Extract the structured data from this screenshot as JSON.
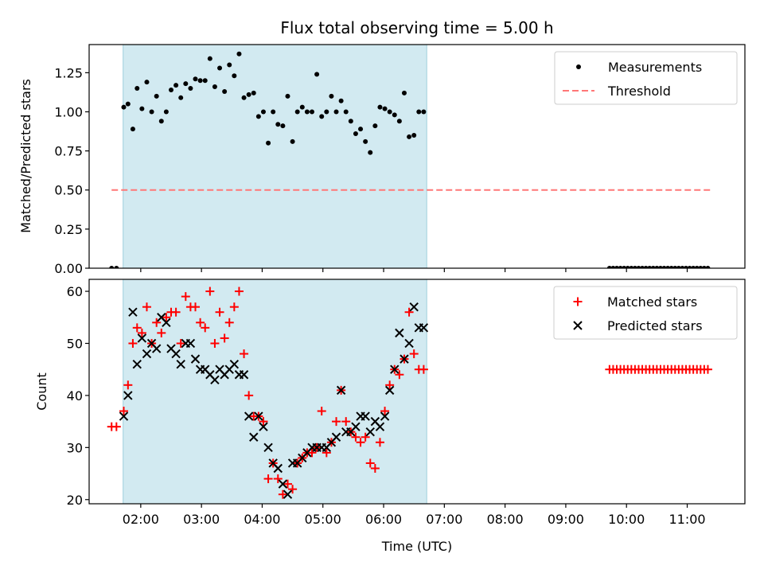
{
  "title": "Flux total observing time = 5.00 h",
  "colors": {
    "measurement": "#000000",
    "threshold": "#ff7777",
    "matched": "#ff0000",
    "predicted": "#000000",
    "observing_window": "#add8e6"
  },
  "chart_data": [
    {
      "type": "scatter",
      "title": "Flux total observing time = 5.00 h",
      "ylabel": "Matched/Predicted stars",
      "xlabel": "",
      "xlim": [
        1.15,
        11.95
      ],
      "ylim": [
        0,
        1.43
      ],
      "yticks": [
        {
          "value": 0.0,
          "label": "0.00"
        },
        {
          "value": 0.25,
          "label": "0.25"
        },
        {
          "value": 0.5,
          "label": "0.50"
        },
        {
          "value": 0.75,
          "label": "0.75"
        },
        {
          "value": 1.0,
          "label": "1.00"
        },
        {
          "value": 1.25,
          "label": "1.25"
        }
      ],
      "xticks": [
        2,
        3,
        4,
        5,
        6,
        7,
        8,
        9,
        10,
        11
      ],
      "shaded_region": [
        1.71,
        6.71
      ],
      "legend_position": "upper right",
      "legend": [
        "Measurements",
        "Threshold"
      ],
      "threshold": {
        "name": "Threshold",
        "value": 0.5,
        "x_range": [
          1.52,
          11.4
        ]
      },
      "series": [
        {
          "name": "Measurements",
          "x": [
            1.52,
            1.6,
            1.72,
            1.79,
            1.87,
            1.94,
            2.02,
            2.1,
            2.18,
            2.26,
            2.34,
            2.42,
            2.5,
            2.58,
            2.66,
            2.74,
            2.82,
            2.9,
            2.98,
            3.06,
            3.14,
            3.22,
            3.3,
            3.38,
            3.46,
            3.54,
            3.62,
            3.7,
            3.78,
            3.86,
            3.94,
            4.02,
            4.1,
            4.18,
            4.26,
            4.34,
            4.42,
            4.5,
            4.58,
            4.66,
            4.74,
            4.82,
            4.9,
            4.98,
            5.06,
            5.14,
            5.22,
            5.3,
            5.38,
            5.46,
            5.54,
            5.62,
            5.7,
            5.78,
            5.86,
            5.94,
            6.02,
            6.1,
            6.18,
            6.26,
            6.34,
            6.42,
            6.5,
            6.58,
            6.66,
            9.72,
            9.78,
            9.84,
            9.9,
            9.96,
            10.02,
            10.08,
            10.14,
            10.2,
            10.26,
            10.32,
            10.38,
            10.44,
            10.5,
            10.56,
            10.62,
            10.68,
            10.74,
            10.8,
            10.86,
            10.92,
            10.98,
            11.04,
            11.1,
            11.16,
            11.22,
            11.28,
            11.34
          ],
          "y": [
            0.0,
            0.0,
            1.03,
            1.05,
            0.89,
            1.15,
            1.02,
            1.19,
            1.0,
            1.1,
            0.94,
            1.0,
            1.14,
            1.17,
            1.09,
            1.18,
            1.15,
            1.21,
            1.2,
            1.2,
            1.34,
            1.16,
            1.28,
            1.13,
            1.3,
            1.23,
            1.37,
            1.09,
            1.11,
            1.12,
            0.97,
            1.0,
            0.8,
            1.0,
            0.92,
            0.91,
            1.1,
            0.81,
            1.0,
            1.03,
            1.0,
            1.0,
            1.24,
            0.97,
            1.0,
            1.1,
            1.0,
            1.07,
            1.0,
            0.94,
            0.86,
            0.89,
            0.81,
            0.74,
            0.91,
            1.03,
            1.02,
            1.0,
            0.98,
            0.94,
            1.12,
            0.84,
            0.85,
            1.0,
            1.0,
            0.0,
            0.0,
            0.0,
            0.0,
            0.0,
            0.0,
            0.0,
            0.0,
            0.0,
            0.0,
            0.0,
            0.0,
            0.0,
            0.0,
            0.0,
            0.0,
            0.0,
            0.0,
            0.0,
            0.0,
            0.0,
            0.0,
            0.0,
            0.0,
            0.0,
            0.0,
            0.0,
            0.0
          ]
        }
      ]
    },
    {
      "type": "scatter",
      "title": "",
      "xlabel": "Time (UTC)",
      "ylabel": "Count",
      "xlim": [
        1.15,
        11.95
      ],
      "ylim": [
        19.2,
        62.3
      ],
      "yticks": [
        {
          "value": 20,
          "label": "20"
        },
        {
          "value": 30,
          "label": "30"
        },
        {
          "value": 40,
          "label": "40"
        },
        {
          "value": 50,
          "label": "50"
        },
        {
          "value": 60,
          "label": "60"
        }
      ],
      "xticks": [
        {
          "value": 2,
          "label": "02:00"
        },
        {
          "value": 3,
          "label": "03:00"
        },
        {
          "value": 4,
          "label": "04:00"
        },
        {
          "value": 5,
          "label": "05:00"
        },
        {
          "value": 6,
          "label": "06:00"
        },
        {
          "value": 7,
          "label": "07:00"
        },
        {
          "value": 8,
          "label": "08:00"
        },
        {
          "value": 9,
          "label": "09:00"
        },
        {
          "value": 10,
          "label": "10:00"
        },
        {
          "value": 11,
          "label": "11:00"
        }
      ],
      "shaded_region": [
        1.71,
        6.71
      ],
      "legend_position": "upper right",
      "legend": [
        "Matched stars",
        "Predicted stars"
      ],
      "series": [
        {
          "name": "Matched stars",
          "x": [
            1.52,
            1.6,
            1.72,
            1.79,
            1.87,
            1.94,
            2.02,
            2.1,
            2.18,
            2.26,
            2.34,
            2.42,
            2.5,
            2.58,
            2.66,
            2.74,
            2.82,
            2.9,
            2.98,
            3.06,
            3.14,
            3.22,
            3.3,
            3.38,
            3.46,
            3.54,
            3.62,
            3.7,
            3.78,
            3.86,
            3.94,
            4.02,
            4.1,
            4.18,
            4.26,
            4.34,
            4.42,
            4.5,
            4.58,
            4.66,
            4.74,
            4.82,
            4.9,
            4.98,
            5.06,
            5.14,
            5.22,
            5.3,
            5.38,
            5.46,
            5.54,
            5.62,
            5.7,
            5.78,
            5.86,
            5.94,
            6.02,
            6.1,
            6.18,
            6.26,
            6.34,
            6.42,
            6.5,
            6.58,
            6.66,
            9.72,
            9.78,
            9.84,
            9.9,
            9.96,
            10.02,
            10.08,
            10.14,
            10.2,
            10.26,
            10.32,
            10.38,
            10.44,
            10.5,
            10.56,
            10.62,
            10.68,
            10.74,
            10.8,
            10.86,
            10.92,
            10.98,
            11.04,
            11.1,
            11.16,
            11.22,
            11.28,
            11.34
          ],
          "y": [
            34,
            34,
            37,
            42,
            50,
            53,
            52,
            57,
            50,
            54,
            52,
            55,
            56,
            56,
            50,
            59,
            57,
            57,
            54,
            53,
            60,
            50,
            56,
            51,
            54,
            57,
            60,
            48,
            40,
            36,
            36,
            35,
            24,
            27,
            24,
            21,
            23,
            22,
            27,
            28,
            29,
            29,
            30,
            37,
            29,
            31,
            35,
            41,
            35,
            33,
            32,
            31,
            32,
            27,
            26,
            31,
            37,
            42,
            45,
            44,
            47,
            56,
            48,
            45,
            45,
            45,
            45,
            45,
            45,
            45,
            45,
            45,
            45,
            45,
            45,
            45,
            45,
            45,
            45,
            45,
            45,
            45,
            45,
            45,
            45,
            45,
            45,
            45,
            45,
            45,
            45,
            45,
            45
          ]
        },
        {
          "name": "Predicted stars",
          "x": [
            1.72,
            1.79,
            1.87,
            1.94,
            2.02,
            2.1,
            2.18,
            2.26,
            2.34,
            2.42,
            2.5,
            2.58,
            2.66,
            2.74,
            2.82,
            2.9,
            2.98,
            3.06,
            3.14,
            3.22,
            3.3,
            3.38,
            3.46,
            3.54,
            3.62,
            3.7,
            3.78,
            3.86,
            3.94,
            4.02,
            4.1,
            4.18,
            4.26,
            4.34,
            4.42,
            4.5,
            4.58,
            4.66,
            4.74,
            4.82,
            4.9,
            4.98,
            5.06,
            5.14,
            5.22,
            5.3,
            5.38,
            5.46,
            5.54,
            5.62,
            5.7,
            5.78,
            5.86,
            5.94,
            6.02,
            6.1,
            6.18,
            6.26,
            6.34,
            6.42,
            6.5,
            6.58,
            6.66
          ],
          "y": [
            36,
            40,
            56,
            46,
            51,
            48,
            50,
            49,
            55,
            54,
            49,
            48,
            46,
            50,
            50,
            47,
            45,
            45,
            44,
            43,
            45,
            44,
            45,
            46,
            44,
            44,
            36,
            32,
            36,
            34,
            30,
            27,
            26,
            23,
            21,
            27,
            27,
            28,
            29,
            30,
            30,
            30,
            30,
            31,
            32,
            41,
            33,
            33,
            34,
            36,
            36,
            33,
            35,
            34,
            36,
            41,
            45,
            52,
            47,
            50,
            57,
            53,
            53
          ]
        }
      ]
    }
  ]
}
